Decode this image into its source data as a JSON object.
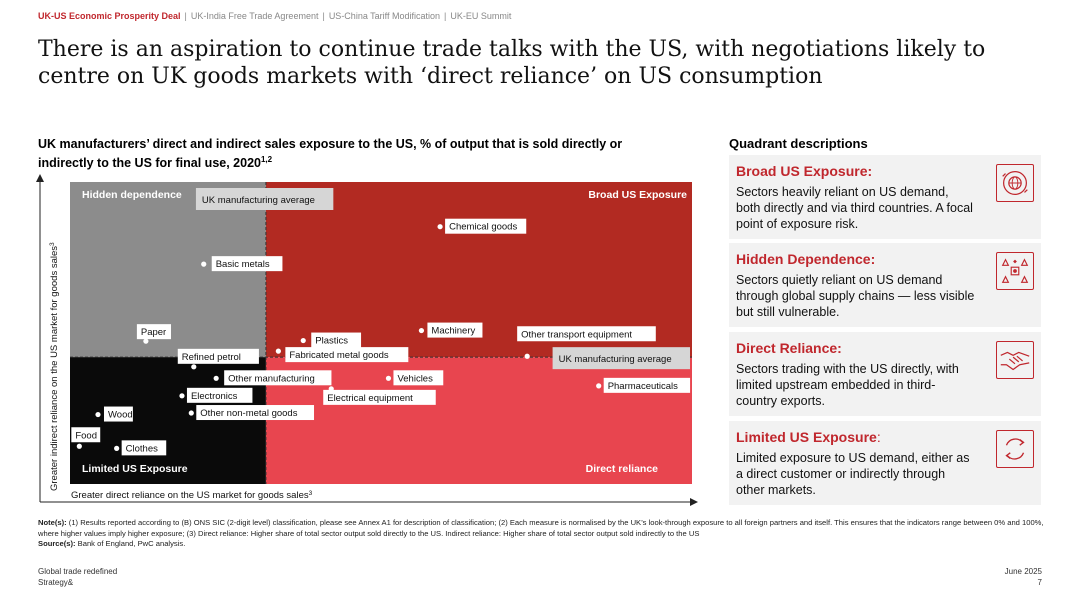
{
  "breadcrumb": {
    "items": [
      "UK-US Economic Prosperity Deal",
      "UK-India Free Trade Agreement",
      "US-China Tariff Modification",
      "UK-EU Summit"
    ],
    "active_index": 0
  },
  "title": "There is an aspiration to continue trade talks with the US, with negotiations likely to centre on UK goods markets with ‘direct reliance’ on US consumption",
  "chart_data": {
    "type": "scatter",
    "title": "UK manufacturers’ direct and indirect sales exposure to the US, % of output that is sold directly or indirectly to the US for final use, 2020",
    "title_superscript": "1,2",
    "xlabel": "Greater direct reliance on the US market for goods sales",
    "xlabel_superscript": "3",
    "ylabel": "Greater indirect reliance on the US market for goods sales",
    "ylabel_superscript": "3",
    "xlim": [
      0,
      100
    ],
    "ylim": [
      0,
      100
    ],
    "grid": false,
    "avg_x": 31.5,
    "avg_y": 42,
    "avg_x_label": "UK manufacturing average",
    "avg_y_label": "UK manufacturing average",
    "quadrants": {
      "top_left": {
        "label": "Hidden dependence",
        "color": "#8c8c8c"
      },
      "top_right": {
        "label": "Broad US Exposure",
        "color": "#b22a22"
      },
      "bottom_left": {
        "label": "Limited US Exposure",
        "color": "#0a0a0a"
      },
      "bottom_right": {
        "label": "Direct reliance",
        "color": "#e8454f"
      }
    },
    "points": [
      {
        "name": "Chemical goods",
        "x": 59.5,
        "y": 85.2
      },
      {
        "name": "Basic metals",
        "x": 21.5,
        "y": 72.8
      },
      {
        "name": "Paper",
        "x": 12.2,
        "y": 47.3
      },
      {
        "name": "Refined petrol",
        "x": 19.9,
        "y": 38.8
      },
      {
        "name": "Plastics",
        "x": 37.5,
        "y": 47.5
      },
      {
        "name": "Fabricated metal goods",
        "x": 33.5,
        "y": 44.0
      },
      {
        "name": "Machinery",
        "x": 56.5,
        "y": 50.8
      },
      {
        "name": "Other transport equipment",
        "x": 73.5,
        "y": 42.3
      },
      {
        "name": "Other manufacturing",
        "x": 23.5,
        "y": 35.0
      },
      {
        "name": "Vehicles",
        "x": 51.2,
        "y": 35.0
      },
      {
        "name": "Electronics",
        "x": 18.0,
        "y": 29.2
      },
      {
        "name": "Electrical equipment",
        "x": 42.0,
        "y": 31.5
      },
      {
        "name": "Pharmaceuticals",
        "x": 85.0,
        "y": 32.5
      },
      {
        "name": "Wood",
        "x": 4.5,
        "y": 23.0
      },
      {
        "name": "Other non-metal goods",
        "x": 19.5,
        "y": 23.5
      },
      {
        "name": "Food",
        "x": 1.5,
        "y": 12.5
      },
      {
        "name": "Clothes",
        "x": 7.5,
        "y": 11.8
      }
    ]
  },
  "quadrant_descriptions": {
    "heading": "Quadrant descriptions",
    "items": [
      {
        "name": "Broad US Exposure:",
        "text": "Sectors heavily reliant on US demand, both directly and via third countries. A focal point of exposure risk.",
        "icon": "globe-target-icon"
      },
      {
        "name": "Hidden Dependence:",
        "text": "Sectors quietly reliant on US demand through global supply chains — less visible but still vulnerable.",
        "icon": "shapes-network-icon"
      },
      {
        "name": "Direct Reliance:",
        "text": "Sectors trading with the US directly, with limited upstream embedded in third-country exports.",
        "icon": "handshake-icon"
      },
      {
        "name": "Limited US Exposure",
        "name_suffix": ":",
        "text": "Limited exposure to US demand, either as a direct customer or indirectly through other markets.",
        "icon": "cycle-arrows-icon"
      }
    ]
  },
  "notes": {
    "label": "Note(s):",
    "text": " (1) Results reported according to (B) ONS SIC (2-digit level) classification, please see Annex A1 for description of classification; (2) Each measure is normalised by the UK’s look-through exposure to all foreign partners and itself. This ensures that the indicators range between 0% and 100%, where higher values imply higher exposure; (3) Direct reliance: Higher share of total sector output sold directly to the US. Indirect reliance: Higher share of total sector output sold indirectly to the US",
    "source_label": "Source(s):",
    "source_text": " Bank of England, PwC analysis."
  },
  "footer": {
    "left_line1": "Global trade redefined",
    "left_line2": "Strategy&",
    "date": "June 2025",
    "page": "7"
  },
  "colors": {
    "accent": "#c0272d"
  }
}
